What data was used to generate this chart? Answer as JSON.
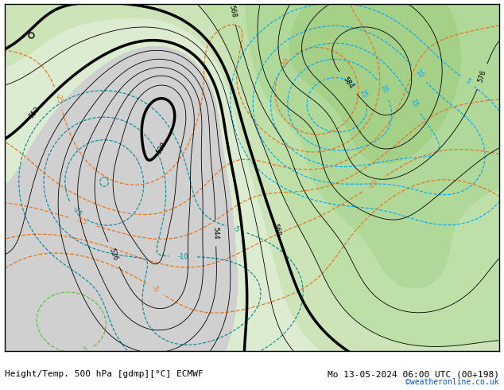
{
  "title_left": "Height/Temp. 500 hPa [gdmp][°C] ECMWF",
  "title_right": "Mo 13-05-2024 06:00 UTC (00+198)",
  "credit": "©weatheronline.co.uk",
  "z500_contour_color": "#000000",
  "temp_pos_color": "#6abf40",
  "temp_neg_color": "#e87820",
  "z850_pos_color": "#00aaff",
  "z850_neg_color": "#008899",
  "font_size_labels": 6,
  "font_size_title": 8,
  "font_size_credit": 7,
  "figsize": [
    6.34,
    4.9
  ],
  "dpi": 100
}
